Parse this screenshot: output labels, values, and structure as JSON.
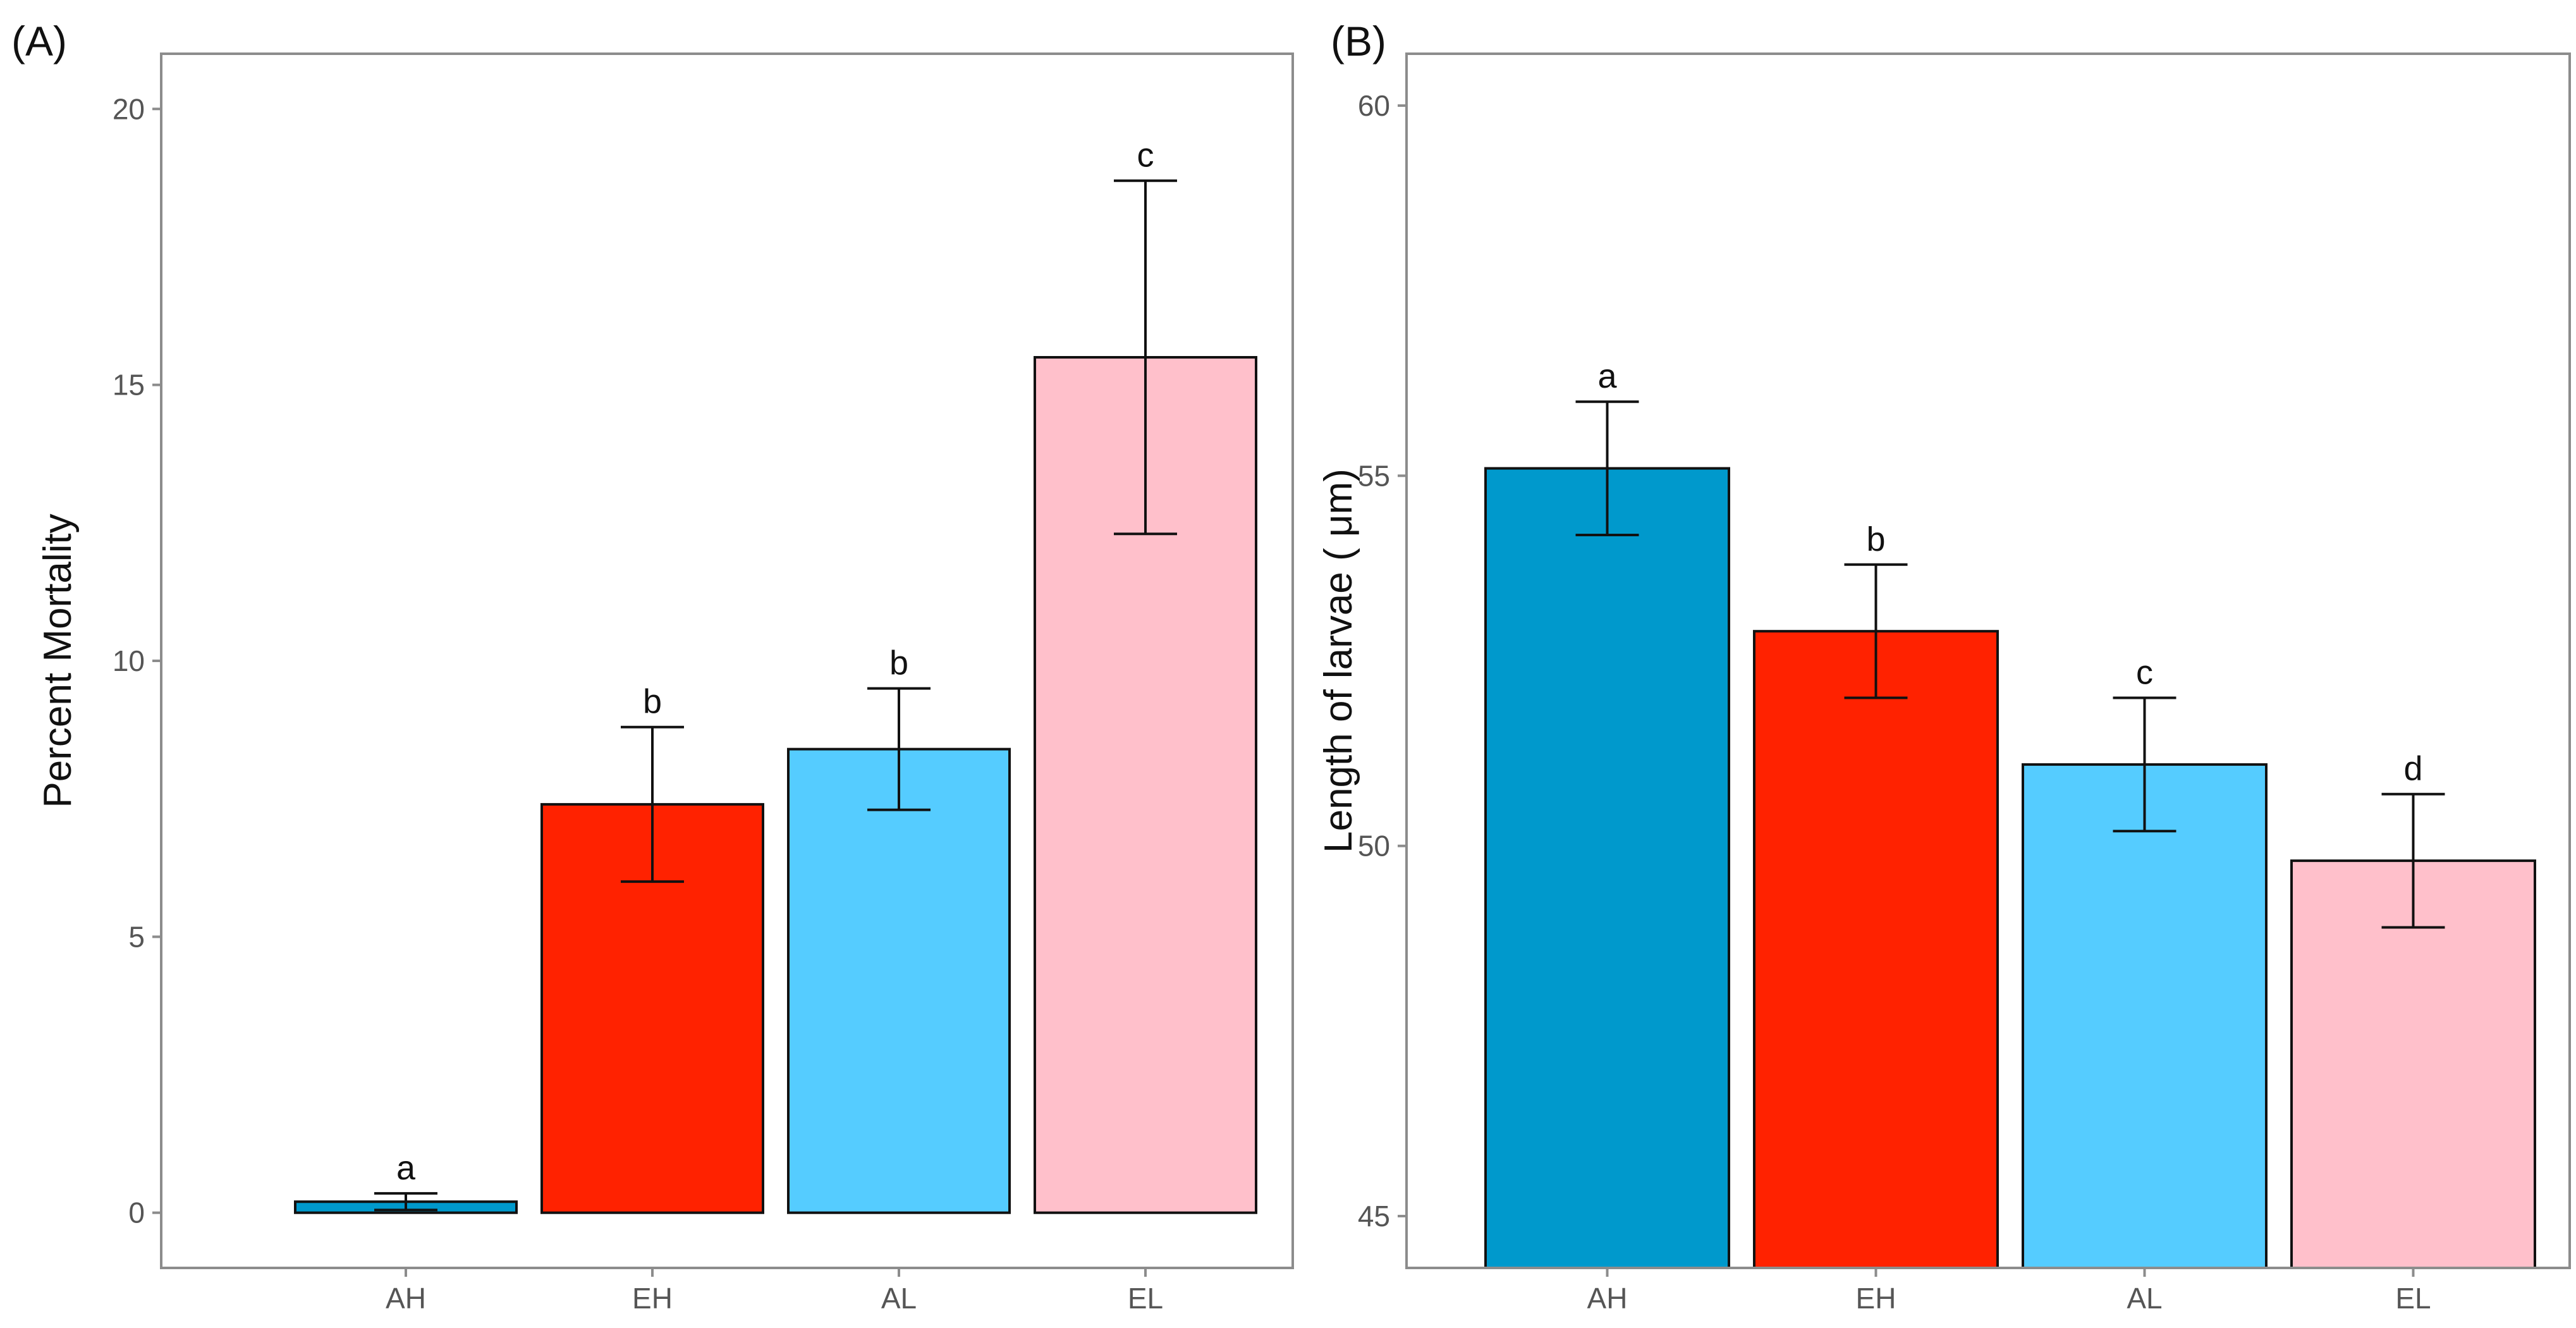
{
  "chart_data": [
    {
      "type": "bar",
      "panel_label": "(A)",
      "title": "",
      "xlabel": "",
      "ylabel": "Percent Mortality",
      "categories": [
        "AH",
        "EH",
        "AL",
        "EL"
      ],
      "values": [
        0.2,
        7.4,
        8.4,
        15.5
      ],
      "errors": [
        0.15,
        1.4,
        1.1,
        3.2
      ],
      "significance": [
        "a",
        "b",
        "b",
        "c"
      ],
      "colors": [
        "#0099cc",
        "#ff2200",
        "#55ccff",
        "#ffc0cb"
      ],
      "ylim": [
        -1,
        21
      ],
      "yticks": [
        0,
        5,
        10,
        15,
        20
      ],
      "grid": false
    },
    {
      "type": "bar",
      "panel_label": "(B)",
      "title": "",
      "xlabel": "",
      "ylabel": "Length of larvae ( μm)",
      "categories": [
        "AH",
        "EH",
        "AL",
        "EL"
      ],
      "values": [
        55.1,
        52.9,
        51.1,
        49.8
      ],
      "errors": [
        0.9,
        0.9,
        0.9,
        0.9
      ],
      "significance": [
        "a",
        "b",
        "c",
        "d"
      ],
      "colors": [
        "#0099cc",
        "#ff2200",
        "#55ccff",
        "#ffc0cb"
      ],
      "ylim": [
        44.3,
        60.7
      ],
      "yticks": [
        45,
        50,
        55,
        60
      ],
      "grid": false
    }
  ]
}
